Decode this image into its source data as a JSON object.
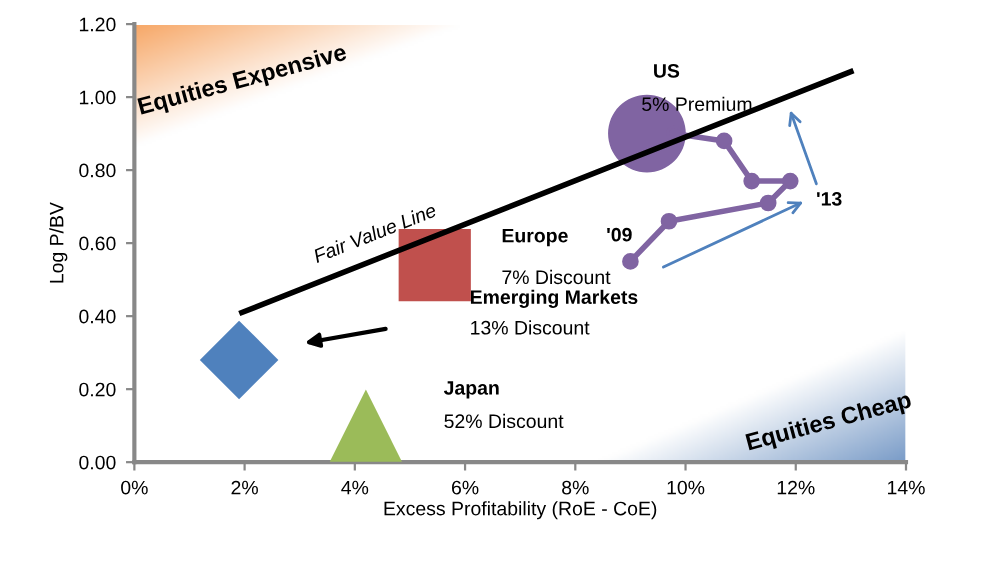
{
  "chart_data": {
    "type": "scatter",
    "xlabel": "Excess Profitability (RoE - CoE)",
    "ylabel": "Log P/BV",
    "xlim": [
      0,
      14
    ],
    "xticks": [
      {
        "value": 0,
        "label": "0%"
      },
      {
        "value": 2,
        "label": "2%"
      },
      {
        "value": 4,
        "label": "4%"
      },
      {
        "value": 6,
        "label": "6%"
      },
      {
        "value": 8,
        "label": "8%"
      },
      {
        "value": 10,
        "label": "10%"
      },
      {
        "value": 12,
        "label": "12%"
      },
      {
        "value": 14,
        "label": "14%"
      }
    ],
    "ylim": [
      0,
      1.2
    ],
    "yticks": [
      {
        "value": 0,
        "label": "0.00"
      },
      {
        "value": 0.2,
        "label": "0.20"
      },
      {
        "value": 0.4,
        "label": "0.40"
      },
      {
        "value": 0.6,
        "label": "0.60"
      },
      {
        "value": 0.8,
        "label": "0.80"
      },
      {
        "value": 1.0,
        "label": "1.00"
      },
      {
        "value": 1.2,
        "label": "1.20"
      }
    ],
    "grid": false,
    "series": [
      {
        "marker": "square",
        "color": "#c0504d",
        "x": [
          5.45
        ],
        "values": [
          0.54
        ]
      },
      {
        "marker": "diamond",
        "color": "#4f81bd",
        "x": [
          1.9
        ],
        "values": [
          0.28
        ]
      },
      {
        "marker": "triangle",
        "color": "#9bbb59",
        "x": [
          4.2
        ],
        "values": [
          0.1
        ]
      },
      {
        "marker": "circle",
        "color": "#8064a2",
        "x": [
          9.3
        ],
        "values": [
          0.9
        ]
      },
      {
        "type": "line",
        "marker": "circle",
        "color": "#8064a2",
        "x": [
          9.0,
          9.7,
          11.5,
          11.9,
          11.2,
          10.7,
          9.8
        ],
        "values": [
          0.55,
          0.66,
          0.71,
          0.77,
          0.77,
          0.88,
          0.9
        ]
      },
      {
        "name": "Fair Value Line",
        "type": "line",
        "marker": "none",
        "color": "#000000",
        "x": [
          1.95,
          13.0
        ],
        "values": [
          0.41,
          1.07
        ]
      }
    ],
    "annotations": [
      "Europe",
      "7% Discount",
      "Emerging Markets",
      "13% Discount",
      "Japan",
      "52% Discount",
      "US",
      "5% Premium",
      "'09",
      "'13",
      "Equities Expensive",
      "Equities Cheap"
    ]
  }
}
